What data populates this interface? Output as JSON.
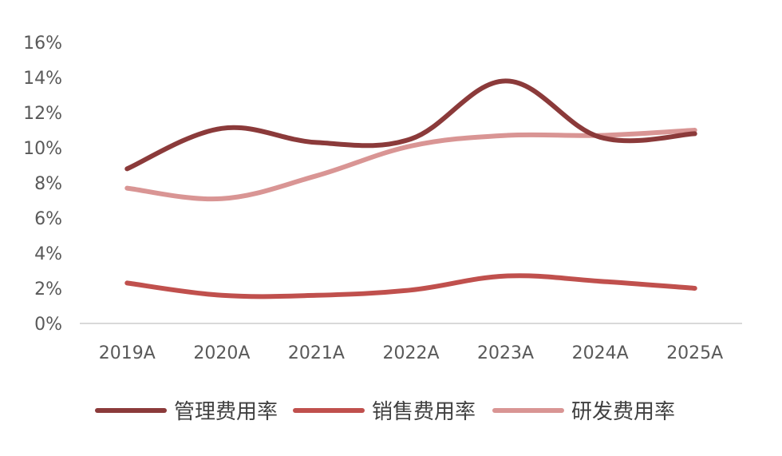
{
  "chart_data": {
    "type": "line",
    "title": "",
    "xlabel": "",
    "ylabel": "",
    "categories": [
      "2019A",
      "2020A",
      "2021A",
      "2022A",
      "2023A",
      "2024A",
      "2025A"
    ],
    "ylim": [
      0,
      16
    ],
    "yticks": [
      0,
      2,
      4,
      6,
      8,
      10,
      12,
      14,
      16
    ],
    "ytick_labels": [
      "0%",
      "2%",
      "4%",
      "6%",
      "8%",
      "10%",
      "12%",
      "14%",
      "16%"
    ],
    "grid": false,
    "legend_position": "bottom",
    "series": [
      {
        "name": "管理费用率",
        "color": "#8B3A3A",
        "values": [
          8.8,
          11.1,
          10.3,
          10.5,
          13.8,
          10.6,
          10.8
        ]
      },
      {
        "name": "销售费用率",
        "color": "#C0504D",
        "values": [
          2.3,
          1.6,
          1.6,
          1.9,
          2.7,
          2.4,
          2.0
        ]
      },
      {
        "name": "研发费用率",
        "color": "#D99594",
        "values": [
          7.7,
          7.1,
          8.4,
          10.1,
          10.7,
          10.7,
          11.0
        ]
      }
    ]
  }
}
